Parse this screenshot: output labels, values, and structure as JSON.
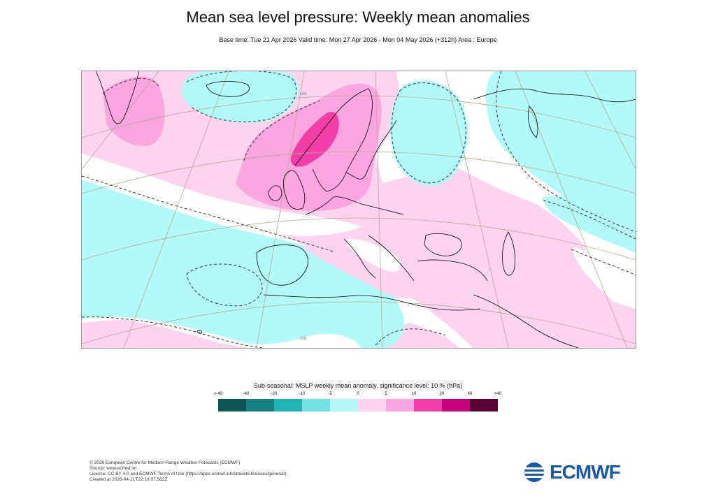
{
  "title": "Mean sea level pressure: Weekly mean anomalies",
  "subtitle": "Base time: Tue 21 Apr 2026 Valid time: Mon 27 Apr 2026 - Mon 04 May 2026 (+312h) Area : Europe",
  "map": {
    "area": "Europe",
    "lat_labels": [
      "60N",
      "30N"
    ],
    "colors": {
      "land_outline": "#000000",
      "graticule": "#b8a890",
      "contour": "#333333"
    }
  },
  "legend": {
    "title": "Sub-seasonal: MSLP weekly mean anomaly, significance level: 10 % (hPa)",
    "ticks": [
      "<-40",
      "-40",
      "-20",
      "-10",
      "-5",
      "0",
      "5",
      "10",
      "20",
      "40",
      ">40"
    ],
    "colors": [
      "#0d5757",
      "#148080",
      "#1eb4b4",
      "#74e2e2",
      "#b2fafa",
      "#fdd4f0",
      "#fba6e0",
      "#f13ea8",
      "#c8007a",
      "#5a0034"
    ]
  },
  "footer": {
    "line1": "© 2026 European Centre for Medium-Range Weather Forecasts (ECMWF)",
    "line2": "Source: www.ecmwf.int",
    "line3": "Licence: CC BY 4.0 and ECMWF Terms of Use (https://apps.ecmwf.int/datasets/licences/general/)",
    "line4": "Created at 2026-04-21T22:18:07.582Z"
  },
  "logo": {
    "text": "ECMWF",
    "color": "#1a5aa3"
  }
}
